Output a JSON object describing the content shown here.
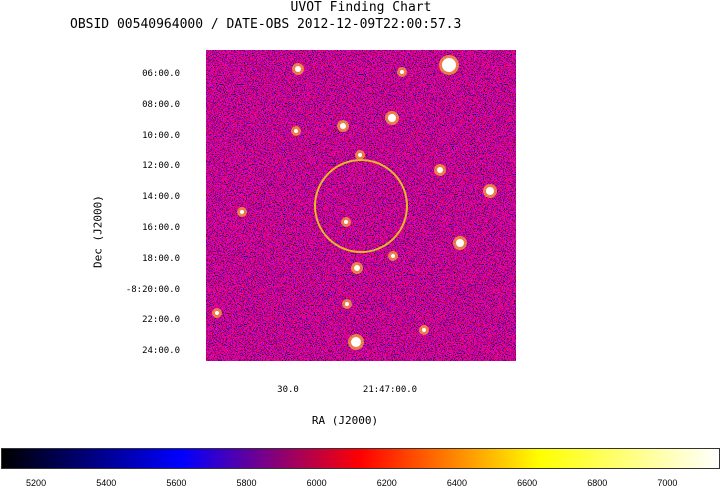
{
  "header": {
    "title": "UVOT Finding Chart",
    "subtitle": "OBSID 00540964000 / DATE-OBS 2012-12-09T22:00:57.3"
  },
  "chart_data": {
    "type": "heatmap",
    "title": "UVOT Finding Chart",
    "xlabel": "RA (J2000)",
    "ylabel": "Dec (J2000)",
    "x_ticks": [
      "30.0",
      "21:47:00.0"
    ],
    "y_ticks": [
      "06:00.0",
      "08:00.0",
      "10:00.0",
      "12:00.0",
      "14:00.0",
      "16:00.0",
      "18:00.0",
      "-8:20:00.0",
      "22:00.0",
      "24:00.0"
    ],
    "colorbar": {
      "ticks": [
        5200,
        5400,
        5600,
        5800,
        6000,
        6200,
        6400,
        6600,
        6800,
        7000
      ],
      "range": [
        5100,
        7150
      ],
      "colors": [
        "#000000",
        "#0000ff",
        "#ff0000",
        "#ffff00",
        "#ffffff"
      ]
    },
    "annotations": [
      "source circle (yellow)"
    ]
  }
}
